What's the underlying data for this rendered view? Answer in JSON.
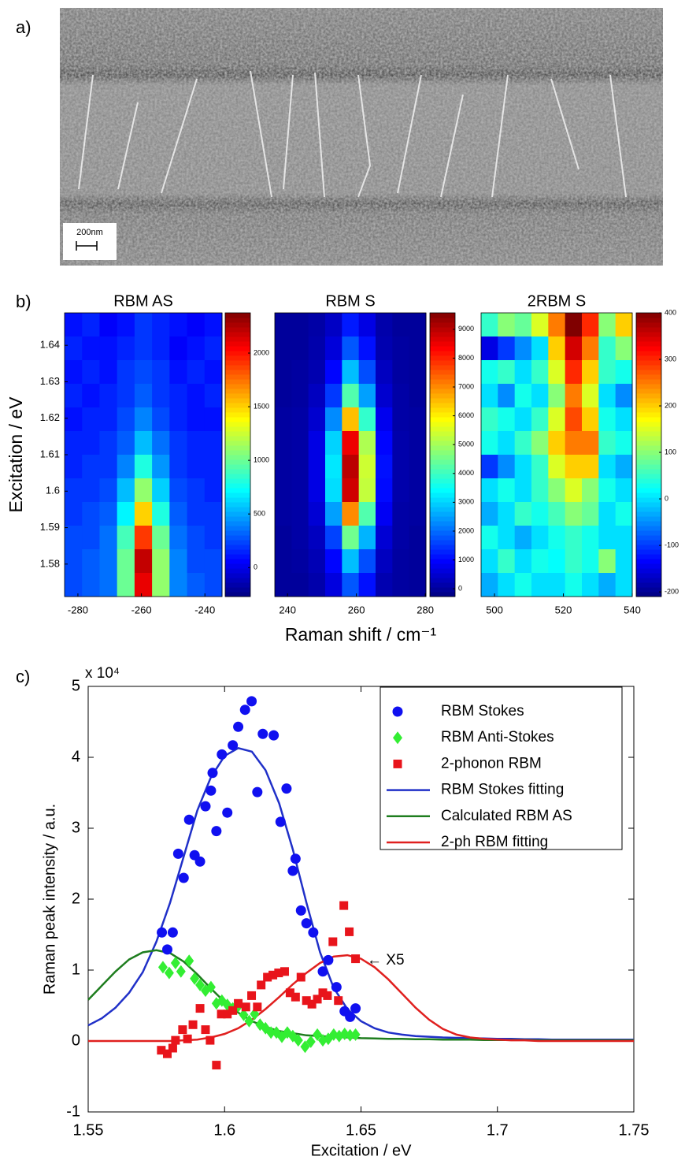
{
  "panel_labels": [
    "a)",
    "b)",
    "c)"
  ],
  "image": {
    "scale_bar": "200nm"
  },
  "panel_b_xlabel": "Raman shift / cm⁻¹",
  "chart_data": [
    {
      "type": "heatmap",
      "title": "RBM AS",
      "ylabel": "Excitation / eV",
      "colormap": "jet",
      "xlim": [
        -284.2,
        -234.6
      ],
      "xticks": [
        -280,
        -260,
        -240
      ],
      "ylim": [
        1.5711,
        1.6489
      ],
      "yticks": [
        1.58,
        1.59,
        1.6,
        1.61,
        1.62,
        1.63,
        1.64
      ],
      "clim": [
        -270,
        2375
      ],
      "cticks": [
        0,
        500,
        1000,
        1500,
        2000
      ],
      "z": [
        [
          100,
          150,
          50,
          100,
          200,
          150,
          100,
          50,
          100
        ],
        [
          150,
          100,
          100,
          150,
          200,
          150,
          50,
          100,
          150
        ],
        [
          100,
          150,
          100,
          200,
          250,
          200,
          100,
          150,
          100
        ],
        [
          150,
          100,
          150,
          200,
          300,
          200,
          150,
          100,
          150
        ],
        [
          100,
          150,
          150,
          250,
          400,
          250,
          150,
          100,
          100
        ],
        [
          150,
          150,
          200,
          300,
          550,
          350,
          200,
          150,
          150
        ],
        [
          150,
          200,
          200,
          400,
          800,
          450,
          200,
          150,
          150
        ],
        [
          200,
          200,
          250,
          550,
          1100,
          600,
          250,
          200,
          150
        ],
        [
          200,
          250,
          300,
          700,
          1500,
          800,
          300,
          200,
          200
        ],
        [
          250,
          250,
          350,
          900,
          1900,
          1000,
          350,
          250,
          200
        ],
        [
          250,
          300,
          350,
          1000,
          2200,
          1100,
          400,
          250,
          250
        ],
        [
          250,
          300,
          350,
          1000,
          2100,
          1100,
          400,
          300,
          250
        ]
      ]
    },
    {
      "type": "heatmap",
      "title": "RBM S",
      "colormap": "jet",
      "xlim": [
        236.3,
        280.2
      ],
      "xticks": [
        240,
        260,
        280
      ],
      "ylim": [
        1.5711,
        1.6489
      ],
      "clim": [
        -270,
        9570
      ],
      "cticks": [
        0,
        1000,
        2000,
        3000,
        4000,
        5000,
        6000,
        7000,
        8000,
        9000
      ],
      "z": [
        [
          0,
          0,
          100,
          400,
          1200,
          700,
          150,
          0,
          0
        ],
        [
          0,
          0,
          150,
          600,
          1800,
          1100,
          200,
          50,
          0
        ],
        [
          0,
          50,
          200,
          1000,
          2800,
          1700,
          350,
          50,
          0
        ],
        [
          0,
          50,
          350,
          1500,
          4200,
          2500,
          500,
          100,
          0
        ],
        [
          50,
          100,
          500,
          2300,
          6500,
          3900,
          800,
          100,
          50
        ],
        [
          50,
          100,
          700,
          3000,
          8500,
          5100,
          1000,
          150,
          50
        ],
        [
          50,
          100,
          700,
          3200,
          9000,
          5400,
          1100,
          150,
          50
        ],
        [
          50,
          100,
          700,
          3100,
          8800,
          5300,
          1050,
          150,
          50
        ],
        [
          50,
          100,
          550,
          2500,
          7000,
          4200,
          850,
          100,
          50
        ],
        [
          0,
          100,
          350,
          1600,
          4500,
          2700,
          550,
          100,
          0
        ],
        [
          0,
          50,
          250,
          1000,
          2800,
          1700,
          350,
          50,
          0
        ],
        [
          0,
          0,
          150,
          650,
          1800,
          1100,
          200,
          50,
          0
        ]
      ]
    },
    {
      "type": "heatmap",
      "title": "2RBM S",
      "colormap": "jet",
      "xlim": [
        496.1,
        540
      ],
      "xticks": [
        500,
        520,
        540
      ],
      "ylim": [
        1.5711,
        1.6489
      ],
      "clim": [
        -210,
        400
      ],
      "cticks": [
        -200,
        -100,
        0,
        100,
        200,
        300,
        400
      ],
      "z": [
        [
          50,
          100,
          80,
          150,
          250,
          400,
          300,
          100,
          200
        ],
        [
          -150,
          -100,
          -50,
          0,
          200,
          350,
          250,
          50,
          100
        ],
        [
          30,
          50,
          0,
          50,
          150,
          300,
          200,
          50,
          30
        ],
        [
          0,
          -50,
          30,
          0,
          100,
          250,
          150,
          0,
          -50
        ],
        [
          50,
          30,
          0,
          50,
          150,
          280,
          200,
          30,
          0
        ],
        [
          30,
          0,
          50,
          100,
          200,
          250,
          250,
          50,
          30
        ],
        [
          -100,
          -50,
          0,
          50,
          150,
          200,
          200,
          0,
          -30
        ],
        [
          0,
          30,
          0,
          50,
          100,
          150,
          100,
          30,
          0
        ],
        [
          -30,
          0,
          50,
          30,
          60,
          100,
          80,
          0,
          30
        ],
        [
          30,
          0,
          -30,
          0,
          30,
          50,
          30,
          0,
          0
        ],
        [
          0,
          50,
          0,
          30,
          20,
          50,
          30,
          100,
          0
        ],
        [
          -30,
          0,
          30,
          0,
          0,
          30,
          0,
          -30,
          0
        ]
      ]
    },
    {
      "type": "scatter",
      "xlabel": "Excitation / eV",
      "ylabel": "Raman peak intensity / a.u.",
      "multiplier": "x 10⁴",
      "annotation": "← X5",
      "legend": "upper right",
      "xlim": [
        1.55,
        1.75
      ],
      "xticks": [
        1.55,
        1.6,
        1.65,
        1.7,
        1.75
      ],
      "ylim": [
        -1,
        5
      ],
      "yticks": [
        -1,
        0,
        1,
        2,
        3,
        4,
        5
      ],
      "series": [
        {
          "name": "RBM Stokes",
          "color": "#1010f0",
          "marker": "circle",
          "x": [
            1.577,
            1.579,
            1.581,
            1.583,
            1.585,
            1.587,
            1.589,
            1.591,
            1.593,
            1.595,
            1.5956,
            1.597,
            1.599,
            1.601,
            1.603,
            1.605,
            1.6075,
            1.6099,
            1.612,
            1.614,
            1.618,
            1.6205,
            1.6227,
            1.625,
            1.626,
            1.628,
            1.63,
            1.6325,
            1.636,
            1.638,
            1.641,
            1.644,
            1.646,
            1.648
          ],
          "values": [
            1.53,
            1.29,
            1.53,
            2.64,
            2.3,
            3.12,
            2.62,
            2.53,
            3.31,
            3.53,
            3.78,
            2.96,
            4.04,
            3.22,
            4.17,
            4.43,
            4.67,
            4.79,
            3.51,
            4.33,
            4.31,
            3.09,
            3.56,
            2.4,
            2.57,
            1.84,
            1.66,
            1.53,
            0.98,
            1.14,
            0.76,
            0.42,
            0.34,
            0.46
          ]
        },
        {
          "name": "RBM Anti-Stokes",
          "color": "#33ee33",
          "marker": "diamond",
          "x": [
            1.5774,
            1.5797,
            1.582,
            1.584,
            1.587,
            1.589,
            1.591,
            1.593,
            1.595,
            1.597,
            1.599,
            1.601,
            1.603,
            1.605,
            1.607,
            1.609,
            1.611,
            1.613,
            1.615,
            1.617,
            1.619,
            1.621,
            1.623,
            1.625,
            1.627,
            1.6295,
            1.6316,
            1.634,
            1.636,
            1.638,
            1.64,
            1.642,
            1.644,
            1.646,
            1.648
          ],
          "values": [
            1.04,
            0.96,
            1.1,
            0.98,
            1.13,
            0.88,
            0.79,
            0.71,
            0.76,
            0.53,
            0.57,
            0.51,
            0.46,
            0.49,
            0.37,
            0.28,
            0.38,
            0.23,
            0.18,
            0.12,
            0.12,
            0.06,
            0.12,
            0.07,
            0.01,
            -0.08,
            -0.01,
            0.09,
            0.01,
            0.03,
            0.09,
            0.07,
            0.1,
            0.08,
            0.09
          ]
        },
        {
          "name": "2-phonon RBM",
          "color": "#e8141b",
          "marker": "square",
          "x": [
            1.5768,
            1.579,
            1.581,
            1.582,
            1.5846,
            1.5864,
            1.5884,
            1.591,
            1.593,
            1.5947,
            1.597,
            1.5988,
            1.601,
            1.603,
            1.605,
            1.6078,
            1.6099,
            1.612,
            1.6134,
            1.6157,
            1.6177,
            1.6198,
            1.622,
            1.624,
            1.626,
            1.628,
            1.63,
            1.632,
            1.634,
            1.636,
            1.6377,
            1.6397,
            1.6417,
            1.6437,
            1.6457,
            1.648
          ],
          "values": [
            -0.13,
            -0.18,
            -0.1,
            0.01,
            0.16,
            0.03,
            0.23,
            0.46,
            0.16,
            0.01,
            -0.34,
            0.38,
            0.38,
            0.43,
            0.53,
            0.48,
            0.64,
            0.48,
            0.79,
            0.9,
            0.93,
            0.96,
            0.98,
            0.68,
            0.62,
            0.9,
            0.57,
            0.52,
            0.59,
            0.68,
            0.64,
            1.4,
            0.57,
            1.91,
            1.54,
            1.16
          ]
        },
        {
          "name": "RBM Stokes fitting",
          "color": "#2030c8",
          "type": "line",
          "x": [
            1.55,
            1.555,
            1.56,
            1.565,
            1.57,
            1.575,
            1.58,
            1.585,
            1.59,
            1.595,
            1.6,
            1.605,
            1.61,
            1.615,
            1.62,
            1.625,
            1.63,
            1.635,
            1.64,
            1.645,
            1.65,
            1.655,
            1.66,
            1.665,
            1.67,
            1.675,
            1.68,
            1.685,
            1.69,
            1.695,
            1.7,
            1.705,
            1.71,
            1.715,
            1.72,
            1.725,
            1.73,
            1.735,
            1.74,
            1.745,
            1.75
          ],
          "values": [
            0.22,
            0.32,
            0.47,
            0.68,
            0.97,
            1.4,
            1.95,
            2.6,
            3.25,
            3.72,
            4.02,
            4.13,
            4.08,
            3.82,
            3.35,
            2.7,
            1.95,
            1.25,
            0.75,
            0.45,
            0.28,
            0.18,
            0.12,
            0.09,
            0.07,
            0.06,
            0.05,
            0.045,
            0.04,
            0.035,
            0.03,
            0.03,
            0.025,
            0.025,
            0.02,
            0.02,
            0.02,
            0.02,
            0.02,
            0.02,
            0.02
          ]
        },
        {
          "name": "Calculated RBM AS",
          "color": "#1e7d1e",
          "type": "line",
          "x": [
            1.55,
            1.555,
            1.56,
            1.565,
            1.57,
            1.575,
            1.58,
            1.585,
            1.59,
            1.595,
            1.6,
            1.605,
            1.61,
            1.615,
            1.62,
            1.625,
            1.63,
            1.635,
            1.64,
            1.645,
            1.65,
            1.655,
            1.66,
            1.665,
            1.67,
            1.675,
            1.68,
            1.685,
            1.69,
            1.695,
            1.7,
            1.705,
            1.71,
            1.715,
            1.72,
            1.725,
            1.73,
            1.735,
            1.74,
            1.745,
            1.75
          ],
          "values": [
            0.58,
            0.78,
            0.98,
            1.15,
            1.25,
            1.28,
            1.24,
            1.12,
            0.94,
            0.74,
            0.55,
            0.4,
            0.28,
            0.2,
            0.14,
            0.11,
            0.08,
            0.07,
            0.06,
            0.05,
            0.04,
            0.035,
            0.03,
            0.03,
            0.025,
            0.025,
            0.02,
            0.02,
            0.02,
            0.015,
            0.015,
            0.015,
            0.015,
            0.01,
            0.01,
            0.01,
            0.01,
            0.01,
            0.01,
            0.01,
            0.01
          ]
        },
        {
          "name": "2-ph RBM fitting",
          "color": "#e0201f",
          "type": "line",
          "x": [
            1.55,
            1.555,
            1.56,
            1.565,
            1.57,
            1.575,
            1.58,
            1.585,
            1.59,
            1.595,
            1.6,
            1.605,
            1.61,
            1.615,
            1.62,
            1.625,
            1.63,
            1.635,
            1.64,
            1.645,
            1.65,
            1.655,
            1.66,
            1.665,
            1.67,
            1.675,
            1.68,
            1.685,
            1.69,
            1.695,
            1.7,
            1.705,
            1.71,
            1.715,
            1.72,
            1.725,
            1.73,
            1.735,
            1.74,
            1.745,
            1.75
          ],
          "values": [
            0,
            0,
            0,
            0,
            0,
            0,
            0,
            0.01,
            0.02,
            0.05,
            0.1,
            0.18,
            0.3,
            0.45,
            0.62,
            0.8,
            0.96,
            1.1,
            1.19,
            1.21,
            1.16,
            1.04,
            0.87,
            0.67,
            0.47,
            0.3,
            0.17,
            0.09,
            0.05,
            0.03,
            0.02,
            0.01,
            0.01,
            0,
            0,
            0,
            0,
            0,
            0,
            0,
            0
          ]
        }
      ]
    }
  ]
}
